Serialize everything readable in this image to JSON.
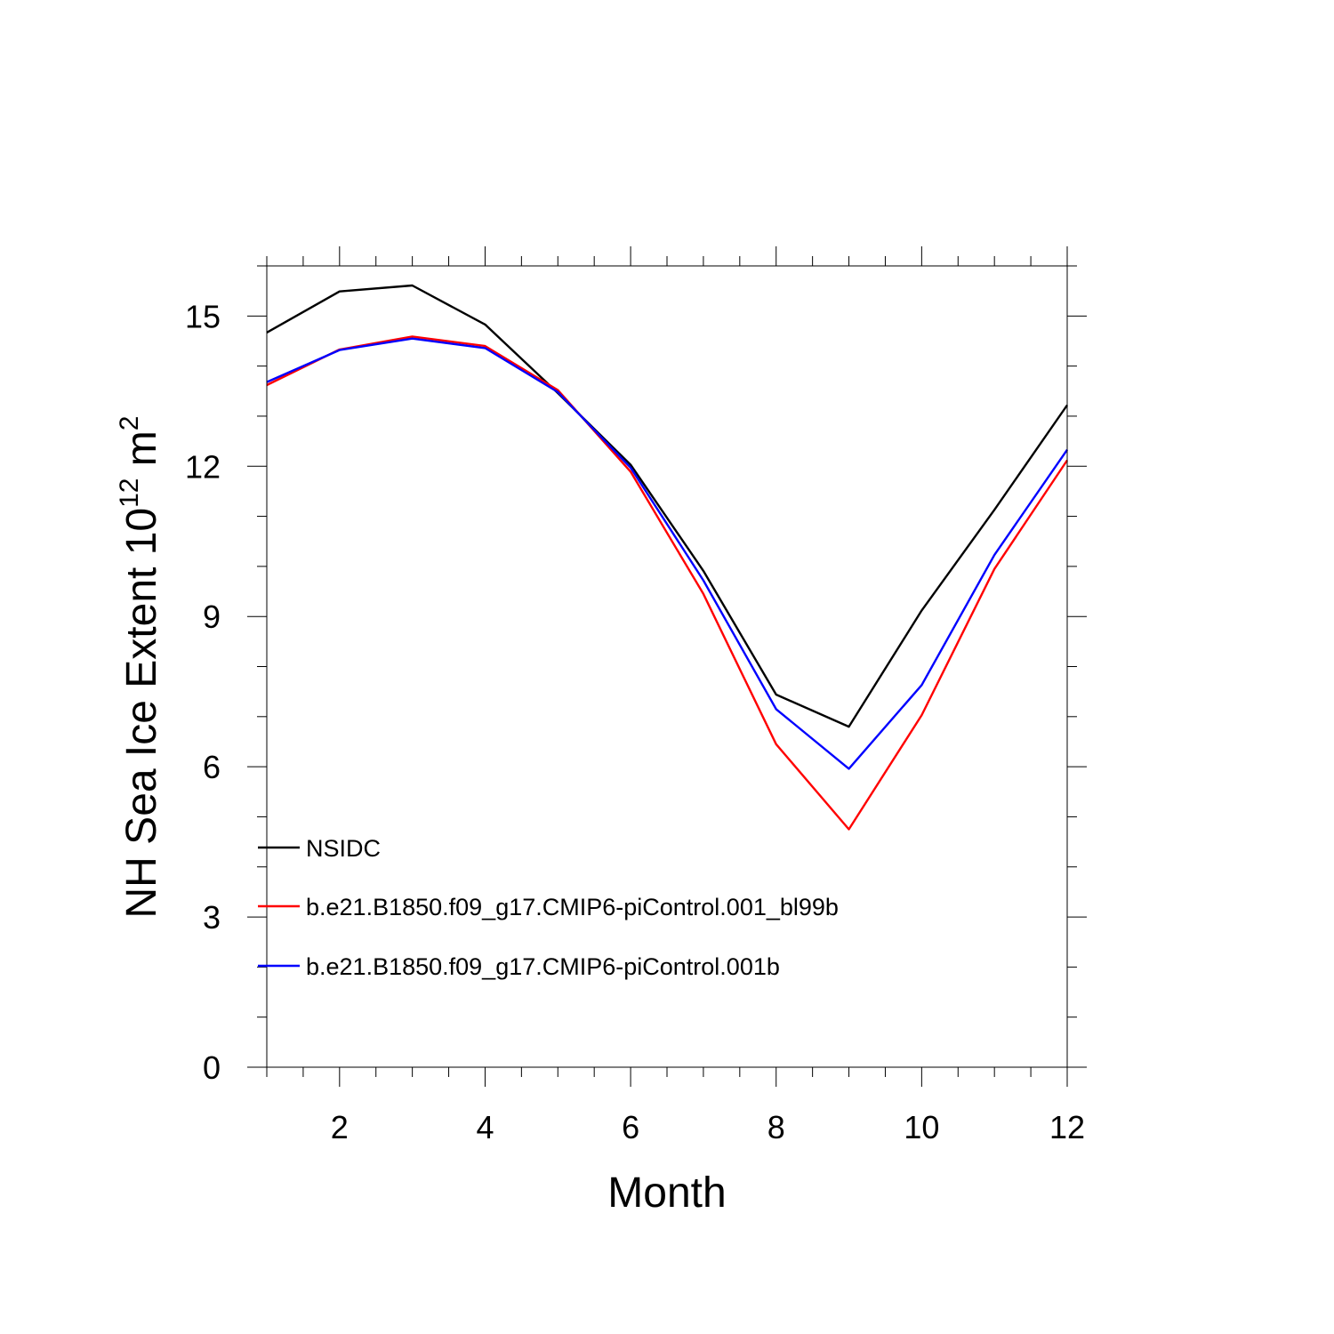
{
  "chart_data": {
    "type": "line",
    "title": "",
    "xlabel": "Month",
    "ylabel": {
      "prefix": "NH Sea Ice Extent 10",
      "exponent": "12",
      "unit": " m",
      "unit_exponent": "2"
    },
    "xlim": [
      1,
      12
    ],
    "ylim": [
      0,
      16
    ],
    "x_ticks": [
      2,
      4,
      6,
      8,
      10,
      12
    ],
    "y_ticks": [
      0,
      3,
      6,
      9,
      12,
      15
    ],
    "x": [
      1,
      2,
      3,
      4,
      5,
      6,
      7,
      8,
      9,
      10,
      11,
      12
    ],
    "series": [
      {
        "name": "NSIDC",
        "color": "#000000",
        "values": [
          14.67,
          15.49,
          15.61,
          14.83,
          13.46,
          12.03,
          9.91,
          7.44,
          6.8,
          9.12,
          11.13,
          13.22
        ]
      },
      {
        "name": "b.e21.B1850.f09_g17.CMIP6-piControl.001_bl99b",
        "color": "#ff0000",
        "values": [
          13.62,
          14.33,
          14.59,
          14.4,
          13.52,
          11.89,
          9.45,
          6.45,
          4.75,
          7.03,
          9.95,
          12.12
        ]
      },
      {
        "name": "b.e21.B1850.f09_g17.CMIP6-piControl.001b",
        "color": "#0000ff",
        "values": [
          13.68,
          14.32,
          14.55,
          14.36,
          13.48,
          11.97,
          9.72,
          7.15,
          5.96,
          7.63,
          10.23,
          12.33
        ]
      }
    ],
    "grid": false,
    "legend_position": "bottom-left"
  }
}
